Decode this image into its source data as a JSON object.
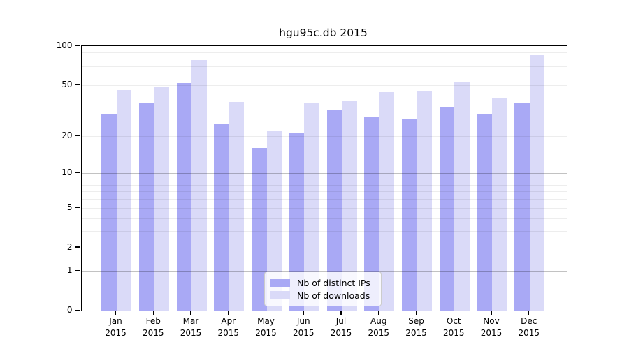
{
  "title": "hgu95c.db 2015",
  "colors": {
    "ips_bar": "#a9a9f5",
    "downloads_bar": "#dadaf8",
    "axis": "#000000",
    "grid_major": "rgba(0,0,0,0.24)",
    "grid_minor": "rgba(0,0,0,0.07)"
  },
  "legend": {
    "items": [
      {
        "label": "Nb of distinct IPs",
        "color_key": "ips_bar"
      },
      {
        "label": "Nb of downloads",
        "color_key": "downloads_bar"
      }
    ]
  },
  "chart_data": {
    "type": "bar",
    "title": "hgu95c.db 2015",
    "y_scale": "log10(1+x)",
    "ylim": [
      0,
      100
    ],
    "y_ticks": [
      0,
      1,
      2,
      5,
      10,
      20,
      50,
      100
    ],
    "grid_minor_values": [
      2,
      3,
      4,
      5,
      6,
      7,
      8,
      9,
      20,
      30,
      40,
      50,
      60,
      70,
      80,
      90
    ],
    "grid_major_values": [
      1,
      10
    ],
    "x_months": [
      "Jan",
      "Feb",
      "Mar",
      "Apr",
      "May",
      "Jun",
      "Jul",
      "Aug",
      "Sep",
      "Oct",
      "Nov",
      "Dec"
    ],
    "x_year": "2015",
    "series": [
      {
        "name": "Nb of distinct IPs",
        "values": [
          30,
          36,
          52,
          25,
          16,
          21,
          32,
          28,
          27,
          34,
          30,
          36
        ]
      },
      {
        "name": "Nb of downloads",
        "values": [
          46,
          49,
          78,
          37,
          22,
          36,
          38,
          44,
          45,
          53,
          40,
          85
        ]
      }
    ],
    "legend_position": "bottom-center-inside",
    "grid": true
  }
}
